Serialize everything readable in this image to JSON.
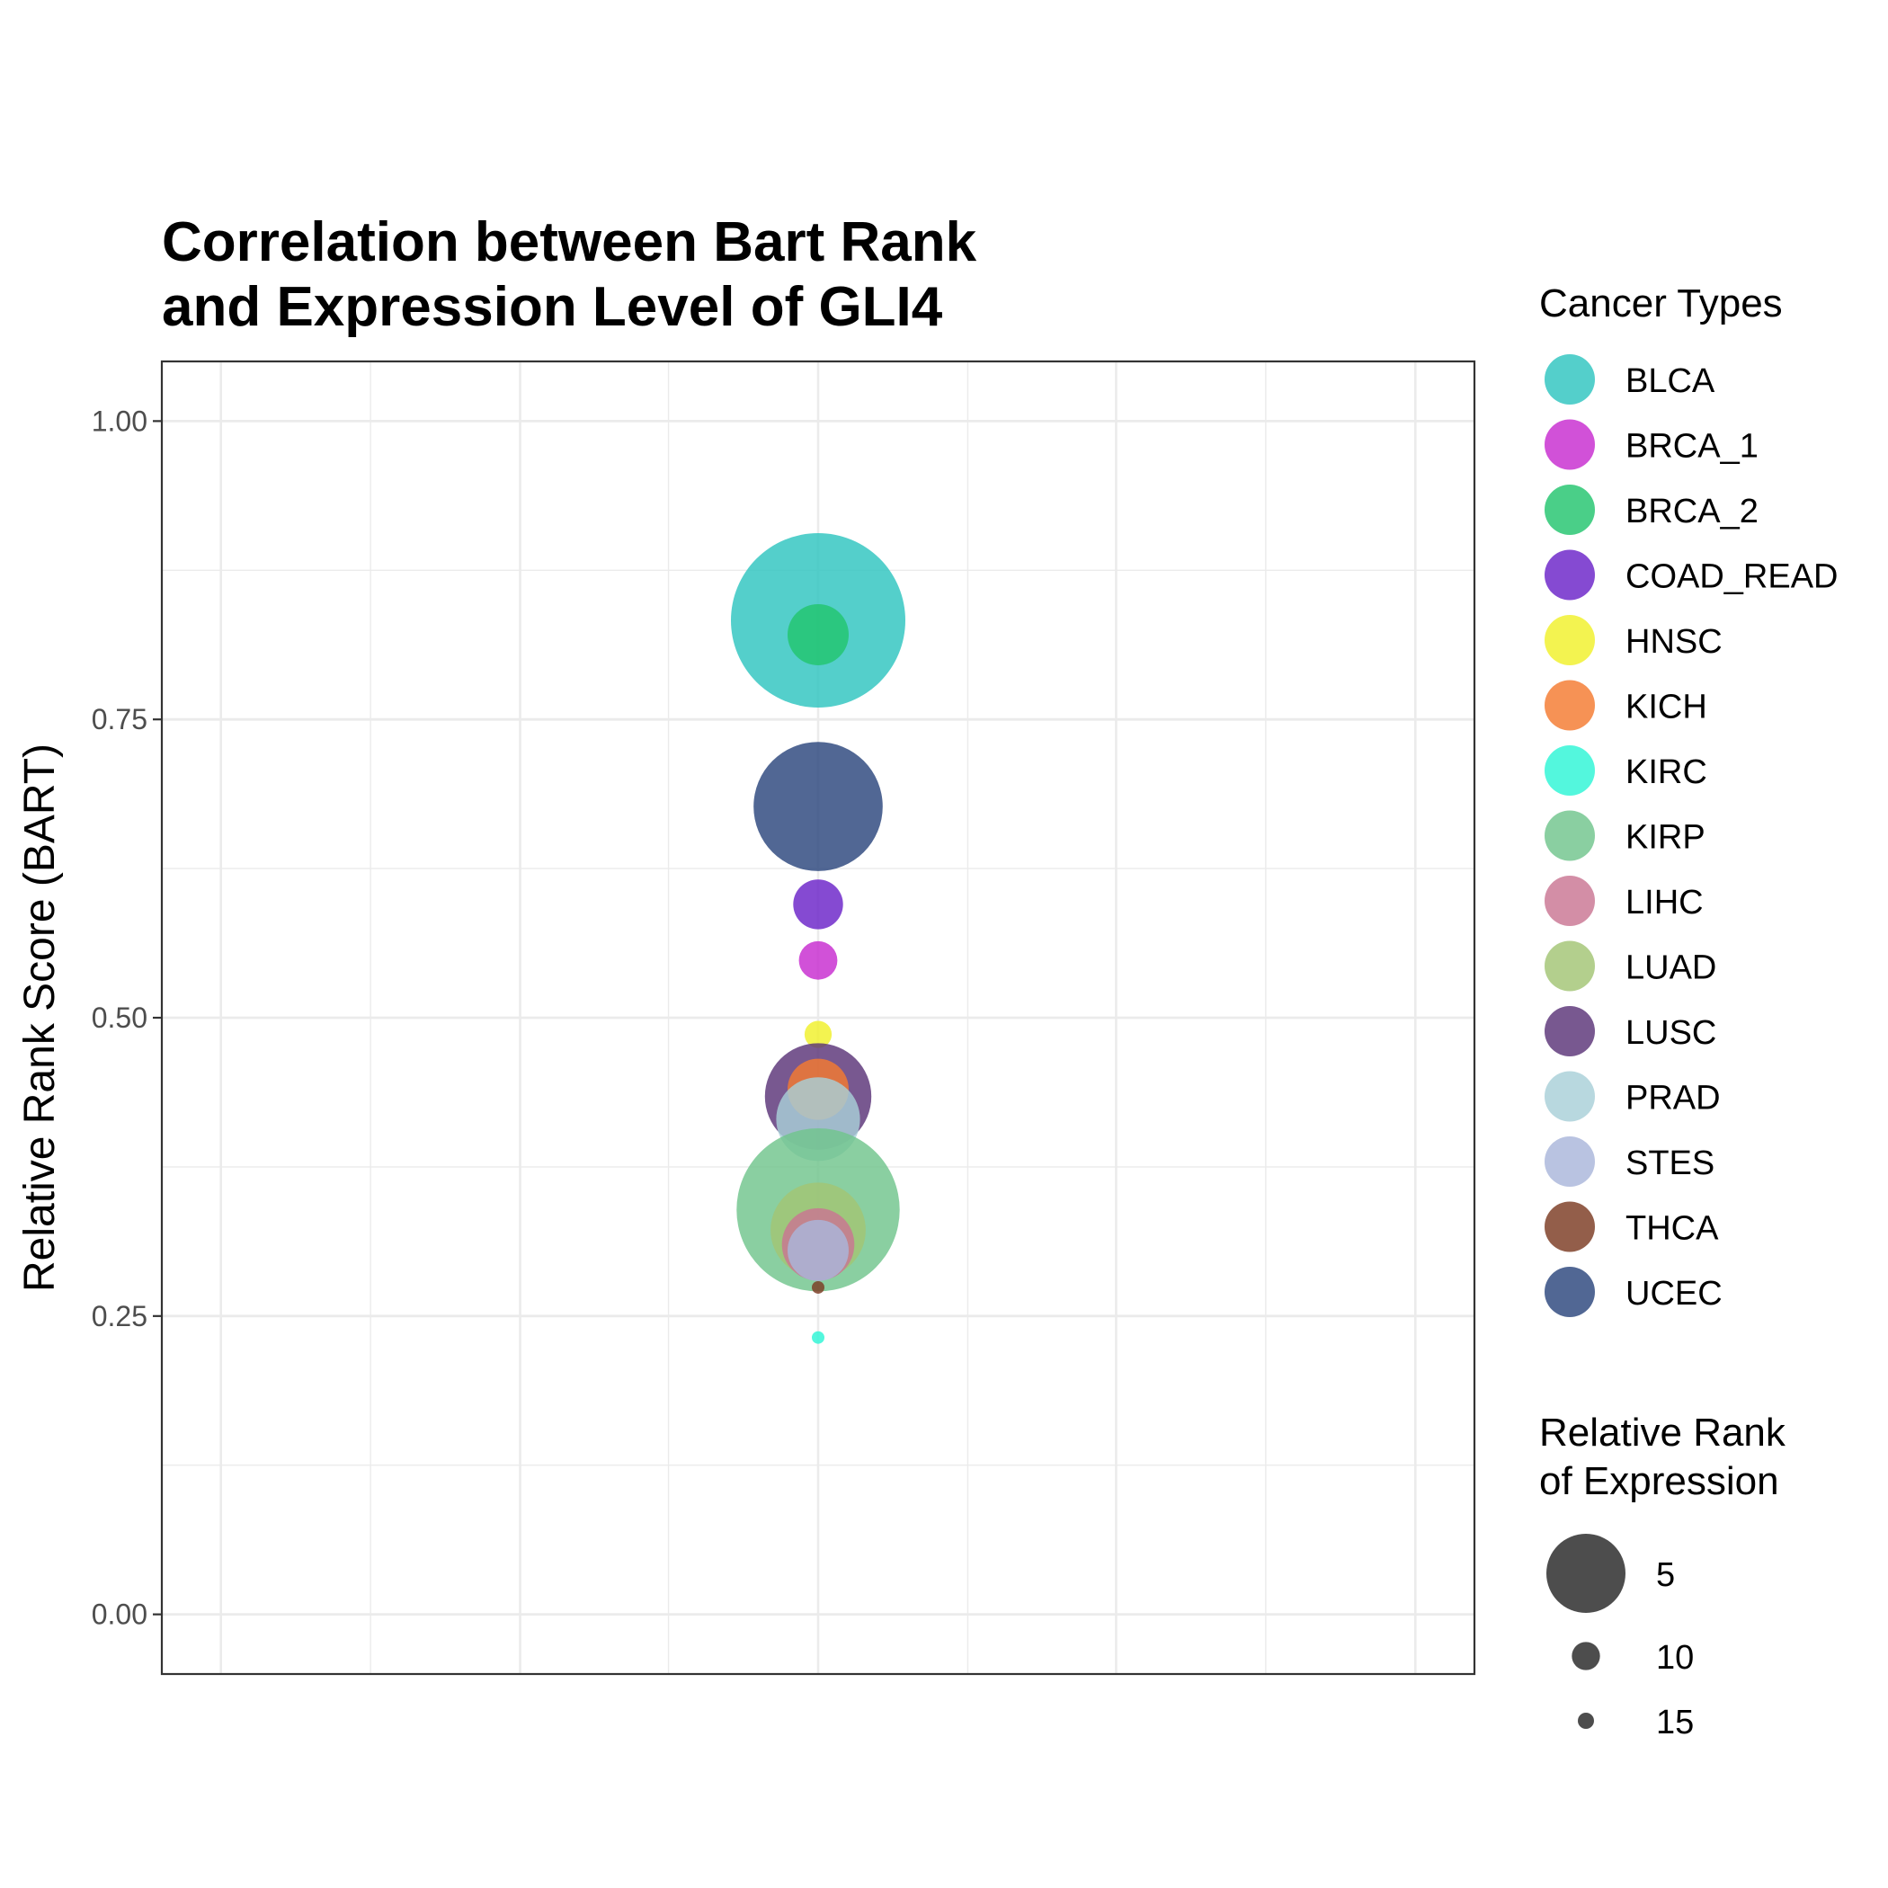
{
  "chart_data": {
    "type": "scatter",
    "title_lines": [
      "Correlation between Bart Rank",
      "and Expression Level of GLI4"
    ],
    "xlabel": "",
    "ylabel": "Relative Rank Score (BART)",
    "ylim": [
      -0.05,
      1.05
    ],
    "y_ticks": [
      "0.00",
      "0.25",
      "0.50",
      "0.75",
      "1.00"
    ],
    "y_tick_values": [
      0,
      0.25,
      0.5,
      0.75,
      1.0
    ],
    "grid": true,
    "color_legend_title": "Cancer Types",
    "size_legend_title_lines": [
      "Relative Rank",
      "of Expression"
    ],
    "size_legend": [
      {
        "label": "5",
        "value": 5
      },
      {
        "label": "10",
        "value": 10
      },
      {
        "label": "15",
        "value": 15
      }
    ],
    "series": [
      {
        "name": "BLCA",
        "color": "#2EC4C0",
        "y": 0.833,
        "expr_rank": 1
      },
      {
        "name": "BRCA_1",
        "color": "#C72BCF",
        "y": 0.548,
        "expr_rank": 13
      },
      {
        "name": "BRCA_2",
        "color": "#22C46E",
        "y": 0.821,
        "expr_rank": 11
      },
      {
        "name": "COAD_READ",
        "color": "#6A22C8",
        "y": 0.595,
        "expr_rank": 12
      },
      {
        "name": "HNSC",
        "color": "#F0F02A",
        "y": 0.486,
        "expr_rank": 14
      },
      {
        "name": "KICH",
        "color": "#F47A30",
        "y": 0.44,
        "expr_rank": 11
      },
      {
        "name": "KIRC",
        "color": "#2DF5D6",
        "y": 0.232,
        "expr_rank": 16
      },
      {
        "name": "KIRP",
        "color": "#70C48C",
        "y": 0.339,
        "expr_rank": 2
      },
      {
        "name": "LIHC",
        "color": "#C97592",
        "y": 0.31,
        "expr_rank": 10
      },
      {
        "name": "LUAD",
        "color": "#A2C474",
        "y": 0.322,
        "expr_rank": 8
      },
      {
        "name": "LUSC",
        "color": "#5A3378",
        "y": 0.434,
        "expr_rank": 7
      },
      {
        "name": "PRAD",
        "color": "#A8CFD8",
        "y": 0.415,
        "expr_rank": 9
      },
      {
        "name": "STES",
        "color": "#AAB6DA",
        "y": 0.305,
        "expr_rank": 11
      },
      {
        "name": "THCA",
        "color": "#7B3A22",
        "y": 0.274,
        "expr_rank": 17
      },
      {
        "name": "UCEC",
        "color": "#2B467C",
        "y": 0.677,
        "expr_rank": 5
      }
    ],
    "draw_order": [
      "BLCA",
      "BRCA_2",
      "UCEC",
      "COAD_READ",
      "BRCA_1",
      "HNSC",
      "LUSC",
      "KICH",
      "PRAD",
      "KIRP",
      "LUAD",
      "LIHC",
      "STES",
      "THCA",
      "KIRC"
    ]
  }
}
